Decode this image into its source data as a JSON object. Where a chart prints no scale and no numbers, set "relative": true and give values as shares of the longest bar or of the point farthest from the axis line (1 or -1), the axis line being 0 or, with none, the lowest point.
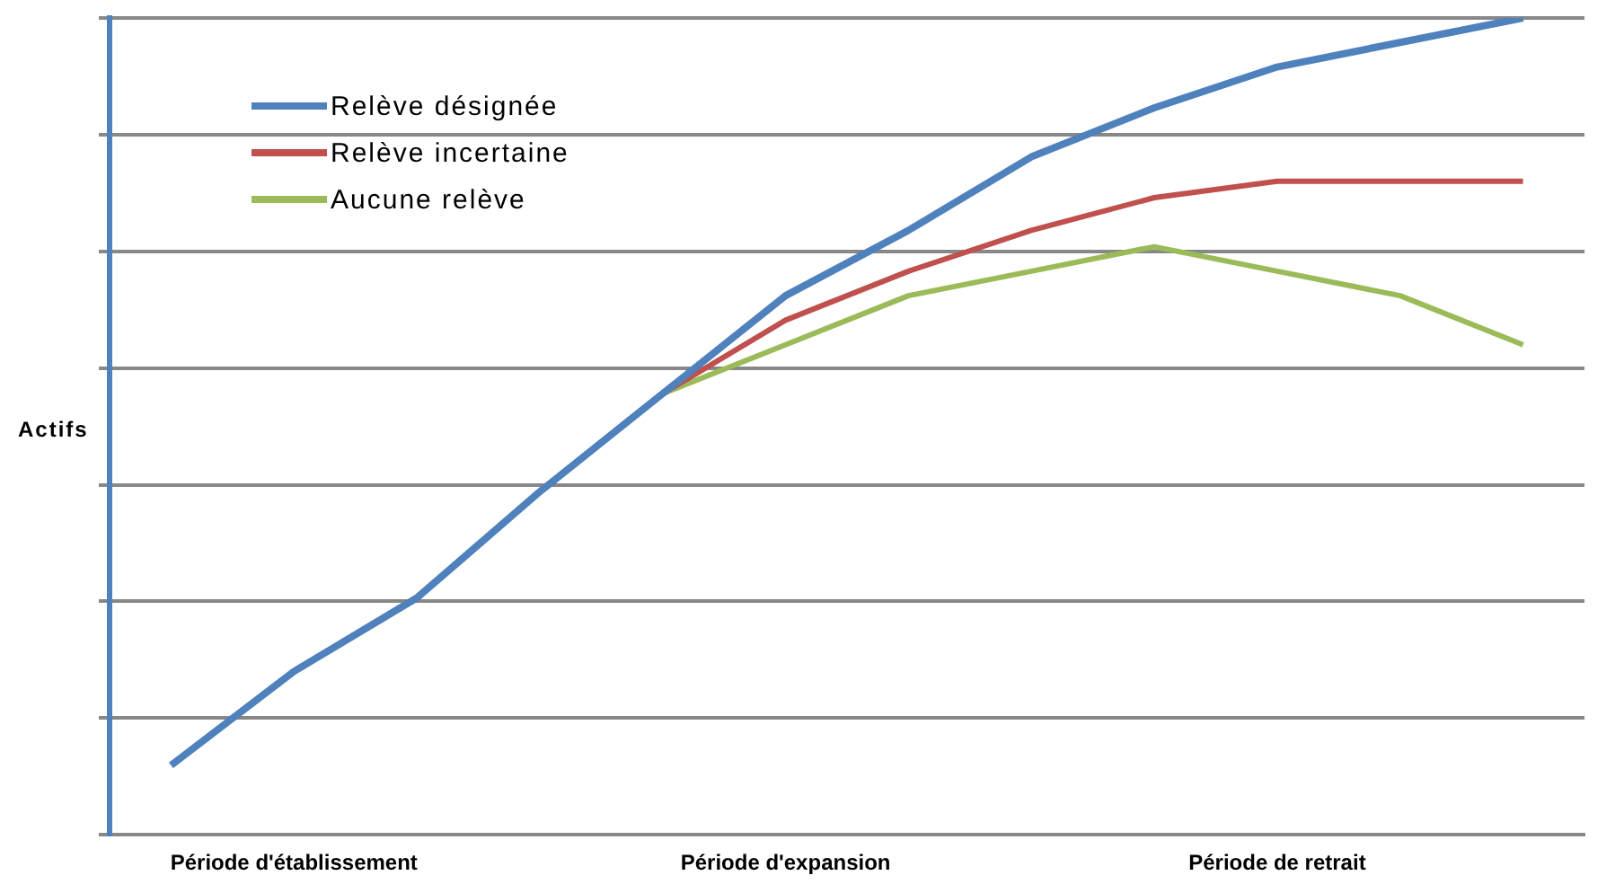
{
  "chart_data": {
    "type": "line",
    "relative": true,
    "ylabel": "Actifs",
    "grid": "y",
    "legend": "top left",
    "marker": "none",
    "line_style": "solid",
    "categories": [
      null,
      "Période d'établissement",
      null,
      null,
      null,
      "Période d'expansion",
      null,
      null,
      null,
      "Période de retrait",
      null,
      null
    ],
    "series": [
      {
        "name": "Relève désignée",
        "color": "#4f81bd",
        "values": [
          0.085,
          0.2,
          0.29,
          0.42,
          0.54,
          0.66,
          0.74,
          0.83,
          0.89,
          0.94,
          0.97,
          1
        ]
      },
      {
        "name": "Relève incertaine",
        "color": "#c0504d",
        "values": [
          null,
          null,
          null,
          null,
          0.54,
          0.63,
          0.69,
          0.74,
          0.78,
          0.8,
          0.8,
          0.8
        ]
      },
      {
        "name": "Aucune relève",
        "color": "#9bbb59",
        "values": [
          null,
          null,
          null,
          null,
          0.54,
          0.6,
          0.66,
          0.69,
          0.72,
          0.69,
          0.66,
          0.6
        ]
      }
    ]
  }
}
